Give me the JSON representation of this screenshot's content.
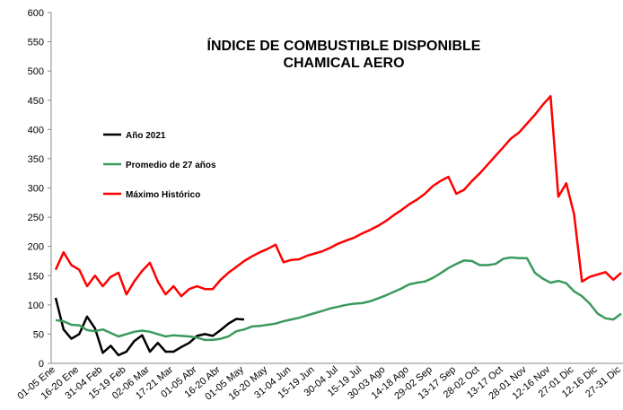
{
  "chart_data": {
    "type": "line",
    "title": [
      "ÍNDICE DE COMBUSTIBLE DISPONIBLE",
      "CHAMICAL AERO"
    ],
    "categories": [
      "01-05 Ene",
      null,
      null,
      "16-20 Ene",
      null,
      null,
      "31-04 Feb",
      null,
      null,
      "15-19 Feb",
      null,
      null,
      "02-06 Mar",
      null,
      null,
      "17-21 Mar",
      null,
      null,
      "01-05 Abr",
      null,
      null,
      "16-20 Abr",
      null,
      null,
      "01-05 May",
      null,
      null,
      "16-20 May",
      null,
      null,
      "31-04 Jun",
      null,
      null,
      "15-19 Jun",
      null,
      null,
      "30-04 Jul",
      null,
      null,
      "15-19 Jul",
      null,
      null,
      "30-03 Ago",
      null,
      null,
      "14-18 Ago",
      null,
      null,
      "29-02 Sep",
      null,
      null,
      "13-17 Sep",
      null,
      null,
      "28-02 Oct",
      null,
      null,
      "13-17 Oct",
      null,
      null,
      "28-01 Nov",
      null,
      null,
      "12-16 Nov",
      null,
      null,
      "27-01 Dic",
      null,
      null,
      "12-16 Dic",
      null,
      null,
      "27-31 Dic"
    ],
    "series": [
      {
        "name": "Año 2021",
        "color": "#000000",
        "values": [
          112,
          58,
          42,
          50,
          80,
          60,
          18,
          30,
          14,
          20,
          38,
          48,
          20,
          35,
          20,
          20,
          28,
          35,
          47,
          50,
          47,
          57,
          68,
          76,
          75,
          null,
          null,
          null,
          null,
          null,
          null,
          null,
          null,
          null,
          null,
          null,
          null,
          null,
          null,
          null,
          null,
          null,
          null,
          null,
          null,
          null,
          null,
          null,
          null,
          null,
          null,
          null,
          null,
          null,
          null,
          null,
          null,
          null,
          null,
          null,
          null,
          null,
          null,
          null,
          null,
          null,
          null,
          null,
          null,
          null,
          null,
          null,
          null
        ]
      },
      {
        "name": "Promedio de 27 años",
        "color": "#3a9a5c",
        "values": [
          74,
          72,
          66,
          65,
          57,
          55,
          58,
          52,
          46,
          50,
          54,
          56,
          54,
          50,
          46,
          48,
          47,
          46,
          44,
          40,
          40,
          42,
          46,
          55,
          58,
          63,
          64,
          66,
          68,
          72,
          75,
          78,
          82,
          86,
          90,
          94,
          97,
          100,
          102,
          103,
          106,
          111,
          116,
          122,
          128,
          135,
          138,
          140,
          146,
          154,
          163,
          170,
          176,
          175,
          168,
          168,
          170,
          179,
          181,
          180,
          180,
          155,
          145,
          138,
          141,
          137,
          123,
          115,
          102,
          85,
          77,
          75,
          85
        ]
      },
      {
        "name": "Máximo Histórico",
        "color": "#ff0000",
        "values": [
          160,
          190,
          168,
          160,
          132,
          150,
          132,
          148,
          155,
          118,
          140,
          158,
          172,
          140,
          118,
          132,
          115,
          127,
          132,
          127,
          127,
          143,
          155,
          165,
          175,
          183,
          190,
          196,
          203,
          173,
          177,
          178,
          184,
          188,
          192,
          198,
          205,
          210,
          215,
          222,
          228,
          235,
          243,
          253,
          262,
          272,
          280,
          290,
          303,
          312,
          319,
          290,
          297,
          312,
          325,
          340,
          355,
          370,
          385,
          395,
          410,
          425,
          442,
          457,
          285,
          308,
          255,
          140,
          148,
          152,
          156,
          143,
          155
        ]
      }
    ],
    "ylim": [
      0,
      600
    ],
    "yticks": [
      0,
      50,
      100,
      150,
      200,
      250,
      300,
      350,
      400,
      450,
      500,
      550,
      600
    ],
    "grid": false
  }
}
